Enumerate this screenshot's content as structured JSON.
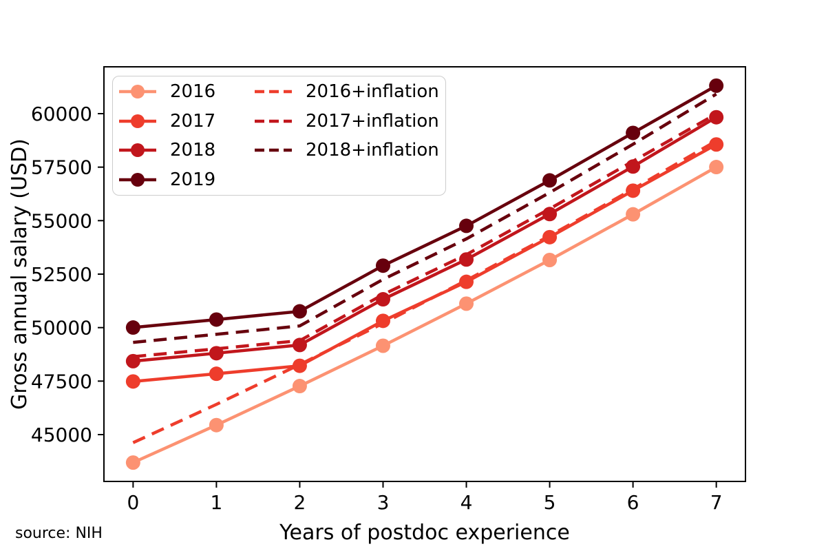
{
  "source_note": "source: NIH",
  "chart_data": {
    "type": "line",
    "title": "",
    "xlabel": "Years of postdoc experience",
    "ylabel": "Gross annual salary (USD)",
    "x": [
      0,
      1,
      2,
      3,
      4,
      5,
      6,
      7
    ],
    "xticks": [
      0,
      1,
      2,
      3,
      4,
      5,
      6,
      7
    ],
    "yticks": [
      45000,
      47500,
      50000,
      52500,
      55000,
      57500,
      60000
    ],
    "xlim": [
      -0.35,
      7.35
    ],
    "ylim": [
      42811,
      62189
    ],
    "grid": false,
    "legend_position": "upper left",
    "legend_columns": 2,
    "axis_color": "#000000",
    "series": [
      {
        "name": "2016",
        "style": "solid",
        "marker": true,
        "color": "#fc9272",
        "values": [
          43692,
          45444,
          47268,
          49152,
          51120,
          53160,
          55296,
          57504
        ]
      },
      {
        "name": "2017",
        "style": "solid",
        "marker": true,
        "color": "#ee3d2c",
        "values": [
          47484,
          47844,
          48216,
          50316,
          52140,
          54228,
          56400,
          58560
        ]
      },
      {
        "name": "2018",
        "style": "solid",
        "marker": true,
        "color": "#c1161c",
        "values": [
          48432,
          48804,
          49188,
          51324,
          53184,
          55308,
          57528,
          59832
        ]
      },
      {
        "name": "2019",
        "style": "solid",
        "marker": true,
        "color": "#67000d",
        "values": [
          50004,
          50376,
          50760,
          52896,
          54756,
          56880,
          59100,
          61308
        ]
      },
      {
        "name": "2016+inflation",
        "style": "dashed",
        "marker": false,
        "color": "#ee3d2c",
        "values": [
          44623,
          46412,
          48275,
          50199,
          52209,
          54292,
          56474,
          58729
        ]
      },
      {
        "name": "2017+inflation",
        "style": "dashed",
        "marker": false,
        "color": "#c1161c",
        "values": [
          48643,
          49011,
          49392,
          51544,
          53412,
          55551,
          57776,
          59989
        ]
      },
      {
        "name": "2018+inflation",
        "style": "dashed",
        "marker": false,
        "color": "#67000d",
        "values": [
          49309,
          49687,
          50078,
          52253,
          54147,
          56309,
          58569,
          60915
        ]
      }
    ]
  }
}
